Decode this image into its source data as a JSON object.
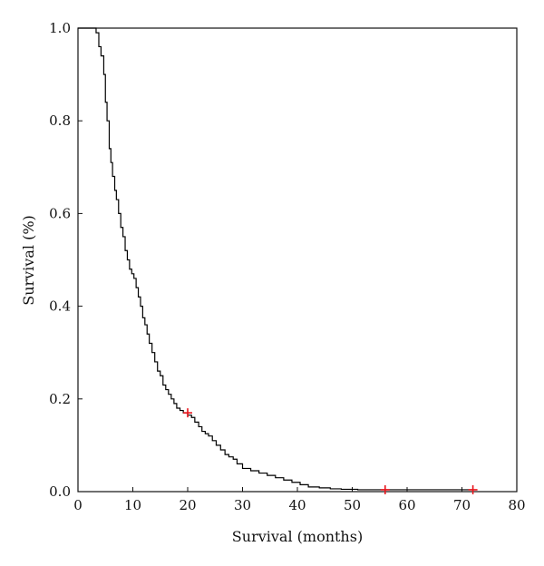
{
  "chart_data": {
    "type": "line",
    "title": "",
    "xlabel": "Survival (months)",
    "ylabel": "Survival (%)",
    "xlim": [
      0,
      80
    ],
    "ylim": [
      0,
      1
    ],
    "x_ticks": [
      0,
      10,
      20,
      30,
      40,
      50,
      60,
      70,
      80
    ],
    "y_ticks": [
      0.0,
      0.2,
      0.4,
      0.6,
      0.8,
      1.0
    ],
    "x_tick_labels": [
      "0",
      "10",
      "20",
      "30",
      "40",
      "50",
      "60",
      "70",
      "80"
    ],
    "y_tick_labels": [
      "0.0",
      "0.2",
      "0.4",
      "0.6",
      "0.8",
      "1.0"
    ],
    "grid": false,
    "line_color": "#000000",
    "censor_color": "#e8141b",
    "series": [
      {
        "step": true,
        "x": [
          0,
          3.3,
          3.8,
          4.2,
          4.7,
          5.0,
          5.3,
          5.7,
          6.0,
          6.3,
          6.7,
          7.0,
          7.4,
          7.8,
          8.2,
          8.6,
          9.0,
          9.4,
          9.8,
          10.2,
          10.6,
          11.0,
          11.4,
          11.8,
          12.2,
          12.6,
          13.0,
          13.5,
          14.0,
          14.5,
          15.0,
          15.5,
          16.0,
          16.5,
          17.0,
          17.5,
          18.0,
          18.6,
          19.2,
          20.0,
          20.7,
          21.3,
          22.0,
          22.6,
          23.2,
          23.8,
          24.5,
          25.2,
          26.0,
          26.8,
          27.5,
          28.3,
          29.0,
          30.0,
          31.5,
          33.0,
          34.5,
          36.0,
          37.5,
          39.0,
          40.5,
          42.0,
          44.0,
          46.0,
          48.0,
          51.0,
          54.0,
          58.0,
          63.0,
          67.0,
          72.0
        ],
        "y": [
          1.0,
          0.99,
          0.96,
          0.94,
          0.9,
          0.84,
          0.8,
          0.74,
          0.71,
          0.68,
          0.65,
          0.63,
          0.6,
          0.57,
          0.55,
          0.52,
          0.5,
          0.48,
          0.47,
          0.46,
          0.44,
          0.42,
          0.4,
          0.375,
          0.36,
          0.34,
          0.32,
          0.3,
          0.28,
          0.26,
          0.25,
          0.23,
          0.22,
          0.21,
          0.2,
          0.19,
          0.18,
          0.175,
          0.17,
          0.165,
          0.16,
          0.15,
          0.14,
          0.13,
          0.125,
          0.12,
          0.11,
          0.1,
          0.09,
          0.08,
          0.075,
          0.07,
          0.06,
          0.05,
          0.045,
          0.04,
          0.035,
          0.03,
          0.025,
          0.02,
          0.015,
          0.01,
          0.008,
          0.006,
          0.005,
          0.004,
          0.004,
          0.004,
          0.004,
          0.004,
          0.004
        ]
      }
    ],
    "censor_points": [
      {
        "x": 20.0,
        "y": 0.17
      },
      {
        "x": 56.0,
        "y": 0.004
      },
      {
        "x": 72.0,
        "y": 0.004
      }
    ]
  }
}
